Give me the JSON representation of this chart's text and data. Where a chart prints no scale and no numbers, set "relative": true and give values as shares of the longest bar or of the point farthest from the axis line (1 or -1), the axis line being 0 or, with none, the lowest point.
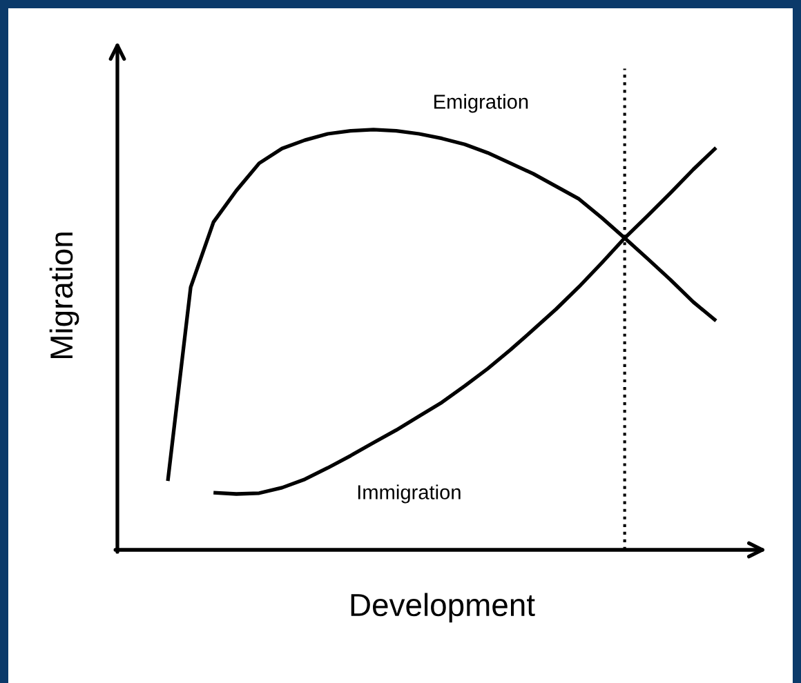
{
  "chart_data": {
    "type": "line",
    "relative": true,
    "xlabel": "Development",
    "ylabel": "Migration",
    "categories": [
      null,
      null,
      null,
      null,
      null,
      null,
      null,
      null,
      null,
      null,
      null,
      null,
      null,
      null,
      null,
      null,
      null,
      null,
      null,
      null,
      null,
      null,
      null,
      null,
      null
    ],
    "series": [
      {
        "name": "Emigration",
        "color": "#000000",
        "values": [
          0.164,
          0.625,
          0.78,
          0.855,
          0.92,
          0.955,
          0.975,
          0.99,
          0.997,
          1.0,
          0.997,
          0.99,
          0.979,
          0.965,
          0.945,
          0.92,
          0.895,
          0.865,
          0.835,
          0.79,
          0.742,
          0.693,
          0.643,
          0.59,
          0.545
        ]
      },
      {
        "name": "Immigration",
        "color": "#000000",
        "values": [
          null,
          null,
          0.136,
          0.133,
          0.135,
          0.148,
          0.168,
          0.195,
          0.224,
          0.255,
          0.285,
          0.318,
          0.351,
          0.39,
          0.431,
          0.476,
          0.524,
          0.573,
          0.626,
          0.683,
          0.742,
          0.795,
          0.849,
          0.905,
          0.957
        ]
      }
    ],
    "line_style": "solid",
    "marker": "none",
    "grid": false,
    "legend": false,
    "tick_labels": false
  }
}
